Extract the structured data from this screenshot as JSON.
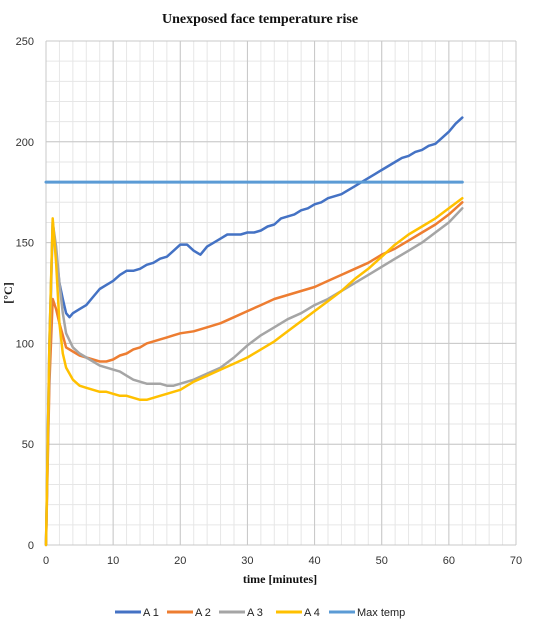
{
  "chart_data": {
    "type": "line",
    "title": "Unexposed face temperature rise",
    "xlabel": "time [minutes]",
    "ylabel": "[°C]",
    "xlim": [
      0,
      70
    ],
    "ylim": [
      0,
      250
    ],
    "xticks": [
      0,
      10,
      20,
      30,
      40,
      50,
      60,
      70
    ],
    "yticks": [
      0,
      50,
      100,
      150,
      200,
      250
    ],
    "grid": true,
    "legend_position": "bottom",
    "series": [
      {
        "name": "A 1",
        "color": "#4472C4",
        "x": [
          0,
          0.5,
          1,
          1.5,
          2,
          2.5,
          3,
          3.5,
          4,
          5,
          6,
          7,
          8,
          9,
          10,
          11,
          12,
          13,
          14,
          15,
          16,
          17,
          18,
          19,
          20,
          21,
          22,
          23,
          24,
          25,
          26,
          27,
          28,
          29,
          30,
          31,
          32,
          33,
          34,
          35,
          36,
          37,
          38,
          39,
          40,
          41,
          42,
          43,
          44,
          45,
          46,
          47,
          48,
          49,
          50,
          51,
          52,
          53,
          54,
          55,
          56,
          57,
          58,
          59,
          60,
          61,
          62
        ],
        "y": [
          0,
          100,
          160,
          145,
          130,
          122,
          115,
          113,
          115,
          117,
          119,
          123,
          127,
          129,
          131,
          134,
          136,
          136,
          137,
          139,
          140,
          142,
          143,
          146,
          149,
          149,
          146,
          144,
          148,
          150,
          152,
          154,
          154,
          154,
          155,
          155,
          156,
          158,
          159,
          162,
          163,
          164,
          166,
          167,
          169,
          170,
          172,
          173,
          174,
          176,
          178,
          180,
          182,
          184,
          186,
          188,
          190,
          192,
          193,
          195,
          196,
          198,
          199,
          202,
          205,
          209,
          212
        ]
      },
      {
        "name": "A 2",
        "color": "#ED7D31",
        "x": [
          0,
          0.5,
          1,
          1.5,
          2,
          2.5,
          3,
          4,
          5,
          6,
          7,
          8,
          9,
          10,
          11,
          12,
          13,
          14,
          15,
          16,
          17,
          18,
          19,
          20,
          22,
          24,
          26,
          28,
          30,
          32,
          34,
          36,
          38,
          40,
          42,
          44,
          46,
          48,
          50,
          52,
          54,
          56,
          58,
          60,
          62
        ],
        "y": [
          0,
          80,
          122,
          117,
          110,
          104,
          98,
          96,
          94,
          93,
          92,
          91,
          91,
          92,
          94,
          95,
          97,
          98,
          100,
          101,
          102,
          103,
          104,
          105,
          106,
          108,
          110,
          113,
          116,
          119,
          122,
          124,
          126,
          128,
          131,
          134,
          137,
          140,
          144,
          147,
          151,
          155,
          159,
          164,
          170
        ]
      },
      {
        "name": "A 3",
        "color": "#A5A5A5",
        "x": [
          0,
          0.5,
          1,
          1.5,
          2,
          2.5,
          3,
          4,
          5,
          6,
          7,
          8,
          9,
          10,
          11,
          12,
          13,
          14,
          15,
          16,
          17,
          18,
          19,
          20,
          22,
          24,
          26,
          28,
          30,
          32,
          34,
          36,
          38,
          40,
          42,
          44,
          46,
          48,
          50,
          52,
          54,
          56,
          58,
          60,
          62
        ],
        "y": [
          0,
          90,
          160,
          148,
          130,
          115,
          105,
          98,
          95,
          93,
          91,
          89,
          88,
          87,
          86,
          84,
          82,
          81,
          80,
          80,
          80,
          79,
          79,
          80,
          82,
          85,
          88,
          93,
          99,
          104,
          108,
          112,
          115,
          119,
          122,
          126,
          130,
          134,
          138,
          142,
          146,
          150,
          155,
          160,
          167
        ]
      },
      {
        "name": "A 4",
        "color": "#FFC000",
        "x": [
          0,
          0.5,
          1,
          1.5,
          2,
          2.5,
          3,
          4,
          5,
          6,
          7,
          8,
          9,
          10,
          11,
          12,
          13,
          14,
          15,
          16,
          17,
          18,
          19,
          20,
          22,
          24,
          26,
          28,
          30,
          32,
          34,
          36,
          38,
          40,
          42,
          44,
          46,
          48,
          50,
          52,
          54,
          56,
          58,
          60,
          62
        ],
        "y": [
          0,
          100,
          162,
          140,
          110,
          95,
          88,
          82,
          79,
          78,
          77,
          76,
          76,
          75,
          74,
          74,
          73,
          72,
          72,
          73,
          74,
          75,
          76,
          77,
          81,
          84,
          87,
          90,
          93,
          97,
          101,
          106,
          111,
          116,
          121,
          126,
          132,
          137,
          143,
          149,
          154,
          158,
          162,
          167,
          172
        ]
      },
      {
        "name": "Max temp",
        "color": "#5B9BD5",
        "x": [
          0,
          62
        ],
        "y": [
          180,
          180
        ]
      }
    ]
  }
}
